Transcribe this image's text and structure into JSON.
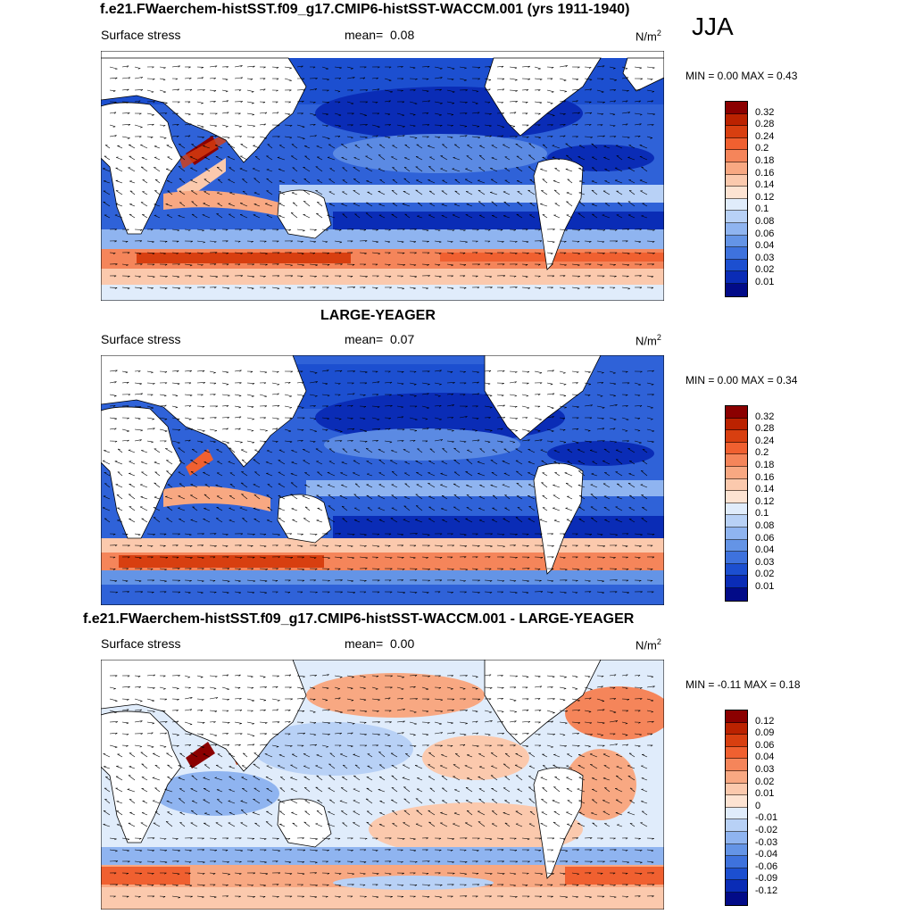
{
  "season": "JJA",
  "panels": [
    {
      "title": "f.e21.FWaerchem-histSST.f09_g17.CMIP6-histSST-WACCM.001 (yrs 1911-1940)",
      "variable": "Surface stress",
      "mean_label": "mean=",
      "mean_value": "0.08",
      "units": "N/m",
      "units_sup": "2",
      "minmax": "MIN =   0.00 MAX =   0.43",
      "levels": [
        "0.32",
        "0.28",
        "0.24",
        "0.2",
        "0.18",
        "0.16",
        "0.14",
        "0.12",
        "0.1",
        "0.08",
        "0.06",
        "0.04",
        "0.03",
        "0.02",
        "0.01"
      ],
      "colors": [
        "#8b0000",
        "#bb2200",
        "#d83f10",
        "#f06030",
        "#f5855a",
        "#f8a882",
        "#fbc9ad",
        "#fde3d2",
        "#e0ecfb",
        "#b8d1f6",
        "#8fb4f0",
        "#6494e6",
        "#3e72dd",
        "#1c4fd0",
        "#0a2cb6",
        "#020b88"
      ]
    },
    {
      "title": "LARGE-YEAGER",
      "variable": "Surface stress",
      "mean_label": "mean=",
      "mean_value": "0.07",
      "units": "N/m",
      "units_sup": "2",
      "minmax": "MIN =   0.00 MAX =   0.34",
      "levels": [
        "0.32",
        "0.28",
        "0.24",
        "0.2",
        "0.18",
        "0.16",
        "0.14",
        "0.12",
        "0.1",
        "0.08",
        "0.06",
        "0.04",
        "0.03",
        "0.02",
        "0.01"
      ],
      "colors": [
        "#8b0000",
        "#bb2200",
        "#d83f10",
        "#f06030",
        "#f5855a",
        "#f8a882",
        "#fbc9ad",
        "#fde3d2",
        "#e0ecfb",
        "#b8d1f6",
        "#8fb4f0",
        "#6494e6",
        "#3e72dd",
        "#1c4fd0",
        "#0a2cb6",
        "#020b88"
      ]
    },
    {
      "title": "f.e21.FWaerchem-histSST.f09_g17.CMIP6-histSST-WACCM.001 - LARGE-YEAGER",
      "variable": "Surface stress",
      "mean_label": "mean=",
      "mean_value": "0.00",
      "units": "N/m",
      "units_sup": "2",
      "minmax": "MIN =  -0.11 MAX =   0.18",
      "levels": [
        "0.12",
        "0.09",
        "0.06",
        "0.04",
        "0.03",
        "0.02",
        "0.01",
        "0",
        "-0.01",
        "-0.02",
        "-0.03",
        "-0.04",
        "-0.06",
        "-0.09",
        "-0.12"
      ],
      "colors": [
        "#8b0000",
        "#bb2200",
        "#d83f10",
        "#f06030",
        "#f5855a",
        "#f8a882",
        "#fbc9ad",
        "#fde3d2",
        "#e0ecfb",
        "#b8d1f6",
        "#8fb4f0",
        "#6494e6",
        "#3e72dd",
        "#1c4fd0",
        "#0a2cb6",
        "#020b88"
      ]
    }
  ]
}
